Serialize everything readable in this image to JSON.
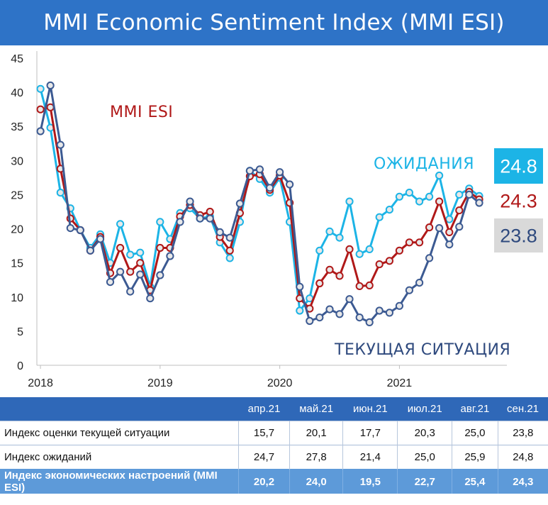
{
  "title": "MMI Economic Sentiment Index (MMI ESI)",
  "chart_data": {
    "type": "line",
    "x_ticks": [
      {
        "label": "2018",
        "x": 2018.0
      },
      {
        "label": "2019",
        "x": 2019.0
      },
      {
        "label": "2020",
        "x": 2020.0
      },
      {
        "label": "2021",
        "x": 2021.0
      }
    ],
    "y_ticks": [
      0,
      5,
      10,
      15,
      20,
      25,
      30,
      35,
      40,
      45
    ],
    "ylim": [
      0,
      45
    ],
    "xlim": [
      2017.97,
      2021.75
    ],
    "grid": false,
    "series": [
      {
        "name": "ОЖИДАНИЯ",
        "color": "#1cb4e6",
        "end_label": "24.8",
        "x": [
          2018.0,
          2018.083,
          2018.167,
          2018.25,
          2018.333,
          2018.417,
          2018.5,
          2018.583,
          2018.667,
          2018.75,
          2018.833,
          2018.917,
          2019.0,
          2019.083,
          2019.167,
          2019.25,
          2019.333,
          2019.417,
          2019.5,
          2019.583,
          2019.667,
          2019.75,
          2019.833,
          2019.917,
          2020.0,
          2020.083,
          2020.167,
          2020.25,
          2020.333,
          2020.417,
          2020.5,
          2020.583,
          2020.667,
          2020.75,
          2020.833,
          2020.917,
          2021.0,
          2021.083,
          2021.167,
          2021.25,
          2021.333,
          2021.417,
          2021.5,
          2021.583,
          2021.667
        ],
        "y": [
          40.5,
          34.8,
          25.3,
          23.0,
          19.8,
          17.2,
          19.2,
          15.0,
          20.7,
          16.2,
          16.5,
          11.5,
          21.0,
          18.5,
          22.3,
          23.0,
          21.5,
          21.8,
          18.0,
          15.7,
          21.0,
          28.5,
          27.3,
          25.3,
          27.5,
          21.0,
          8.0,
          9.8,
          16.8,
          19.6,
          18.7,
          24.0,
          16.3,
          17.0,
          21.7,
          22.8,
          24.7,
          25.3,
          24.0,
          24.7,
          27.8,
          21.4,
          25.0,
          25.9,
          24.8
        ]
      },
      {
        "name": "MMI ESI",
        "color": "#b01818",
        "end_label": "24.3",
        "x": [
          2018.0,
          2018.083,
          2018.167,
          2018.25,
          2018.333,
          2018.417,
          2018.5,
          2018.583,
          2018.667,
          2018.75,
          2018.833,
          2018.917,
          2019.0,
          2019.083,
          2019.167,
          2019.25,
          2019.333,
          2019.417,
          2019.5,
          2019.583,
          2019.667,
          2019.75,
          2019.833,
          2019.917,
          2020.0,
          2020.083,
          2020.167,
          2020.25,
          2020.333,
          2020.417,
          2020.5,
          2020.583,
          2020.667,
          2020.75,
          2020.833,
          2020.917,
          2021.0,
          2021.083,
          2021.167,
          2021.25,
          2021.333,
          2021.417,
          2021.5,
          2021.583,
          2021.667
        ],
        "y": [
          37.5,
          37.8,
          28.8,
          21.5,
          19.8,
          16.8,
          18.8,
          13.5,
          17.2,
          13.7,
          15.0,
          11.0,
          17.2,
          17.2,
          21.8,
          23.5,
          22.0,
          22.5,
          18.8,
          16.8,
          22.3,
          27.7,
          28.0,
          25.7,
          27.8,
          23.8,
          9.8,
          8.3,
          12.0,
          14.0,
          13.1,
          17.0,
          11.6,
          11.7,
          14.8,
          15.3,
          16.8,
          18.0,
          18.0,
          20.2,
          24.0,
          19.5,
          22.7,
          25.4,
          24.3
        ]
      },
      {
        "name": "ТЕКУЩАЯ СИТУАЦИЯ",
        "color": "#3c5a92",
        "end_label": "23.8",
        "x": [
          2018.0,
          2018.083,
          2018.167,
          2018.25,
          2018.333,
          2018.417,
          2018.5,
          2018.583,
          2018.667,
          2018.75,
          2018.833,
          2018.917,
          2019.0,
          2019.083,
          2019.167,
          2019.25,
          2019.333,
          2019.417,
          2019.5,
          2019.583,
          2019.667,
          2019.75,
          2019.833,
          2019.917,
          2020.0,
          2020.083,
          2020.167,
          2020.25,
          2020.333,
          2020.417,
          2020.5,
          2020.583,
          2020.667,
          2020.75,
          2020.833,
          2020.917,
          2021.0,
          2021.083,
          2021.167,
          2021.25,
          2021.333,
          2021.417,
          2021.5,
          2021.583,
          2021.667
        ],
        "y": [
          34.3,
          41.0,
          32.3,
          20.1,
          19.8,
          16.8,
          18.5,
          12.2,
          13.7,
          10.8,
          13.3,
          9.8,
          13.2,
          16.0,
          21.0,
          24.0,
          21.5,
          21.5,
          19.5,
          18.7,
          23.7,
          28.5,
          28.7,
          26.0,
          28.3,
          26.5,
          11.5,
          6.5,
          7.0,
          8.2,
          7.5,
          9.7,
          7.0,
          6.3,
          8.0,
          7.7,
          8.7,
          11.0,
          12.1,
          15.7,
          20.1,
          17.7,
          20.3,
          25.0,
          23.8
        ]
      }
    ],
    "annotations": [
      {
        "text": "MMI ESI",
        "color": "#b01818"
      },
      {
        "text": "ОЖИДАНИЯ",
        "color": "#1cb4e6"
      },
      {
        "text": "ТЕКУЩАЯ СИТУАЦИЯ",
        "color": "#2f4a7e"
      }
    ],
    "end_label_styles": [
      {
        "bg": "#1cb4e6",
        "fg": "#ffffff"
      },
      {
        "bg": "#ffffff",
        "fg": "#b01818"
      },
      {
        "bg": "#d9d9d9",
        "fg": "#2f4a7e"
      }
    ]
  },
  "table": {
    "months": [
      "апр.21",
      "май.21",
      "июн.21",
      "июл.21",
      "авг.21",
      "сен.21"
    ],
    "rows": [
      {
        "label": "Индекс оценки текущей ситуации",
        "values": [
          "15,7",
          "20,1",
          "17,7",
          "20,3",
          "25,0",
          "23,8"
        ]
      },
      {
        "label": "Индекс ожиданий",
        "values": [
          "24,7",
          "27,8",
          "21,4",
          "25,0",
          "25,9",
          "24,8"
        ]
      },
      {
        "label": "Индекс экономических настроений (MMI ESI)",
        "values": [
          "20,2",
          "24,0",
          "19,5",
          "22,7",
          "25,4",
          "24,3"
        ]
      }
    ]
  }
}
